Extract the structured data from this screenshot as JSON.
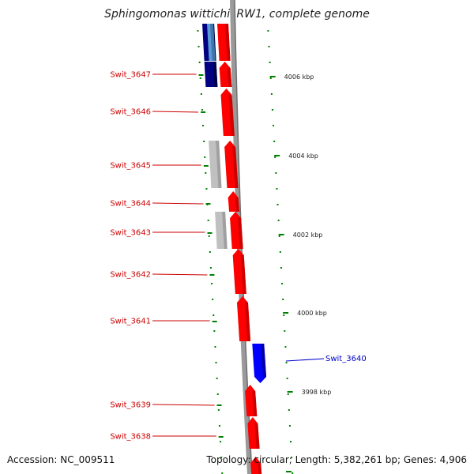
{
  "title": "Sphingomonas wittichii RW1, complete genome",
  "footer": {
    "accession": "Accession: NC_009511",
    "summary": "Topology: circular; Length: 5,382,261 bp; Genes: 4,906"
  },
  "colors": {
    "forward_gene": "#ff0000",
    "forward_gene_dark": "#c40000",
    "reverse_gene": "#0000ff",
    "reverse_gene_navy": "#000080",
    "pseudo_gene": "#c0c0c0",
    "light_blue_gene": "#5b9bd5",
    "backbone": "#9a9a9a",
    "tick": "#008000",
    "label_forward": "#cc0000",
    "label_reverse": "#0000cc"
  },
  "gene_labels_left": [
    {
      "text": "Swit_3647"
    },
    {
      "text": "Swit_3646"
    },
    {
      "text": "Swit_3645"
    },
    {
      "text": "Swit_3644"
    },
    {
      "text": "Swit_3643"
    },
    {
      "text": "Swit_3642"
    },
    {
      "text": "Swit_3641"
    },
    {
      "text": "Swit_3639"
    },
    {
      "text": "Swit_3638"
    }
  ],
  "gene_labels_right": [
    {
      "text": "Swit_3640"
    }
  ],
  "scale_labels": [
    {
      "text": "4006 kbp"
    },
    {
      "text": "4004 kbp"
    },
    {
      "text": "4002 kbp"
    },
    {
      "text": "4000 kbp"
    },
    {
      "text": "3998 kbp"
    }
  ]
}
